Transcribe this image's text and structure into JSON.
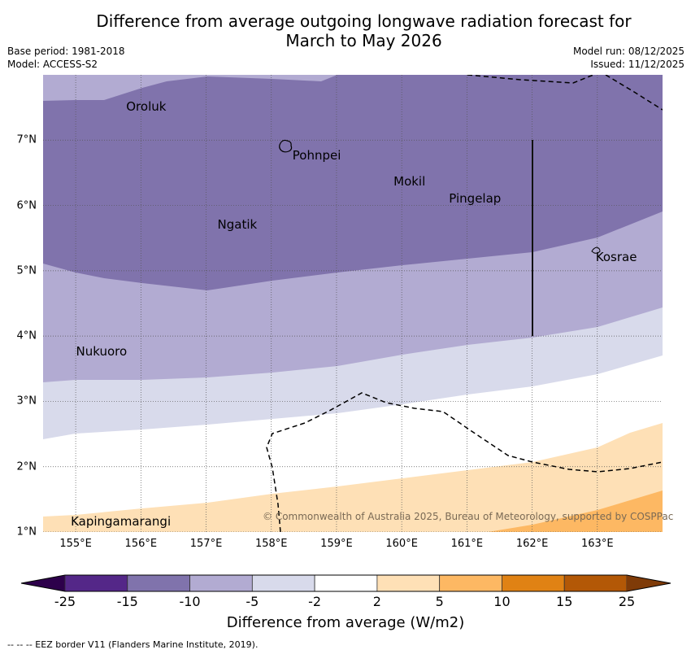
{
  "header": {
    "title_line1": "Difference from average outgoing longwave radiation forecast for",
    "title_line2": "March to May 2026",
    "base_period": "Base period: 1981-2018",
    "model": "Model: ACCESS-S2",
    "model_run": "Model run: 08/12/2025",
    "issued": "Issued: 11/12/2025"
  },
  "map": {
    "lon_range": [
      154.5,
      164.0
    ],
    "lat_range": [
      1.0,
      8.0
    ],
    "lat_ticks": [
      "1°N",
      "2°N",
      "3°N",
      "4°N",
      "5°N",
      "6°N",
      "7°N"
    ],
    "lon_ticks": [
      "155°E",
      "156°E",
      "157°E",
      "158°E",
      "159°E",
      "160°E",
      "161°E",
      "162°E",
      "163°E"
    ],
    "places": [
      {
        "name": "Oroluk",
        "lon": 155.75,
        "lat": 7.6
      },
      {
        "name": "Pohnpei",
        "lon": 158.3,
        "lat": 6.85
      },
      {
        "name": "Mokil",
        "lon": 159.85,
        "lat": 6.45
      },
      {
        "name": "Pingelap",
        "lon": 160.7,
        "lat": 6.2
      },
      {
        "name": "Ngatik",
        "lon": 157.15,
        "lat": 5.8
      },
      {
        "name": "Kosrae",
        "lon": 162.95,
        "lat": 5.3
      },
      {
        "name": "Nukuoro",
        "lon": 154.98,
        "lat": 3.85
      },
      {
        "name": "Kapingamarangi",
        "lon": 154.9,
        "lat": 1.25
      }
    ],
    "copyright": "© Commonwealth of Australia 2025, Bureau of Meteorology, supported by COSPPac",
    "band_colors": {
      "lt_-25": "#2d004b",
      "-25_-15": "#542788",
      "-15_-10": "#8073ac",
      "-10_-5": "#b2abd2",
      "-5_-2": "#d8daeb",
      "-2_2": "#ffffff",
      "2_5": "#fee0b6",
      "5_10": "#fdb863",
      "10_15": "#e08214",
      "15_25": "#b35806",
      "gt_25": "#7f3b08"
    }
  },
  "colorbar": {
    "ticks": [
      "-25",
      "-15",
      "-10",
      "-5",
      "-2",
      "2",
      "5",
      "10",
      "15",
      "25"
    ],
    "colors": [
      "#542788",
      "#8073ac",
      "#b2abd2",
      "#d8daeb",
      "#ffffff",
      "#fee0b6",
      "#fdb863",
      "#e08214",
      "#b35806"
    ],
    "under_color": "#2d004b",
    "over_color": "#7f3b08",
    "title": "Difference from average (W/m2)"
  },
  "footnote": "--  --  -- EEZ border V11 (Flanders Marine Institute, 2019)."
}
